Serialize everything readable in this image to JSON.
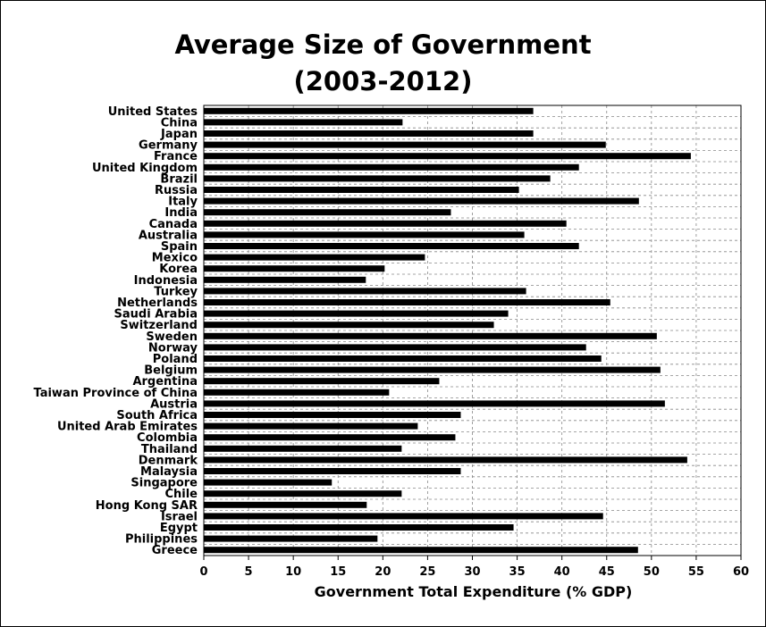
{
  "chart_data": {
    "type": "bar",
    "orientation": "horizontal",
    "title": "Average Size of Government",
    "subtitle": "(2003-2012)",
    "xlabel": "Government Total Expenditure (% GDP)",
    "ylabel": "",
    "xlim": [
      0,
      60
    ],
    "xticks": [
      0,
      5,
      10,
      15,
      20,
      25,
      30,
      35,
      40,
      45,
      50,
      55,
      60
    ],
    "grid": true,
    "legend": "none",
    "bar_color": "#000000",
    "categories": [
      "United States",
      "China",
      "Japan",
      "Germany",
      "France",
      "United Kingdom",
      "Brazil",
      "Russia",
      "Italy",
      "India",
      "Canada",
      "Australia",
      "Spain",
      "Mexico",
      "Korea",
      "Indonesia",
      "Turkey",
      "Netherlands",
      "Saudi Arabia",
      "Switzerland",
      "Sweden",
      "Norway",
      "Poland",
      "Belgium",
      "Argentina",
      "Taiwan Province of China",
      "Austria",
      "South Africa",
      "United Arab Emirates",
      "Colombia",
      "Thailand",
      "Denmark",
      "Malaysia",
      "Singapore",
      "Chile",
      "Hong Kong SAR",
      "Israel",
      "Egypt",
      "Philippines",
      "Greece"
    ],
    "values": [
      36.8,
      22.2,
      36.8,
      44.9,
      54.4,
      41.9,
      38.7,
      35.2,
      48.6,
      27.6,
      40.5,
      35.8,
      41.9,
      24.7,
      20.2,
      18.1,
      36.0,
      45.4,
      34.0,
      32.4,
      50.6,
      42.7,
      44.4,
      51.0,
      26.3,
      20.7,
      51.5,
      28.7,
      23.9,
      28.1,
      22.1,
      54.0,
      28.7,
      14.3,
      22.1,
      18.2,
      44.6,
      34.6,
      19.4,
      48.5
    ]
  }
}
